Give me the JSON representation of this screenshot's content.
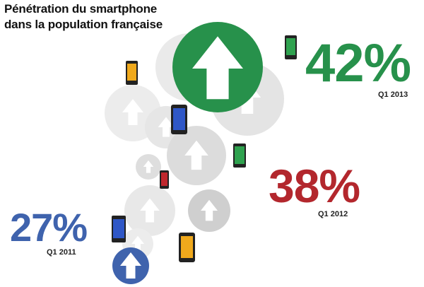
{
  "title_line1": "Pénétration du smartphone",
  "title_line2": "dans la population française",
  "chart_data": {
    "type": "bar",
    "title": "Pénétration du smartphone dans la population française",
    "categories": [
      "Q1 2011",
      "Q1 2012",
      "Q1 2013"
    ],
    "values": [
      27,
      38,
      42
    ],
    "value_labels": [
      "27%",
      "38%",
      "42%"
    ],
    "unit": "%",
    "colors": [
      "#3f63ad",
      "#b3272d",
      "#27914b"
    ]
  },
  "icons": [
    "arrow-up-icon",
    "smartphone-icon"
  ]
}
